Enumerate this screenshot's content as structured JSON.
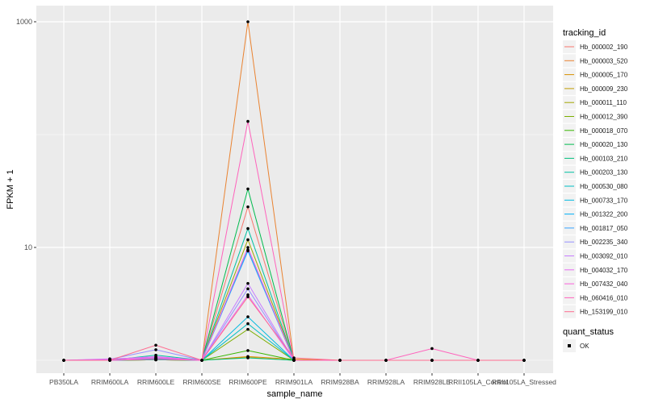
{
  "chart_data": {
    "type": "line",
    "xlabel": "sample_name",
    "ylabel": "FPKM + 1",
    "y_scale": "log10",
    "ylim": [
      0.95,
      1150
    ],
    "y_ticks": [
      10,
      1000
    ],
    "y_tick_labels": [
      "10",
      "1000"
    ],
    "grid": true,
    "legend_position": "right",
    "legend_title": "tracking_id",
    "point_legend_title": "quant_status",
    "point_legend_entries": [
      "OK"
    ],
    "categories": [
      "PB350LA",
      "RRIM600LA",
      "RRIM600LE",
      "RRIM600SE",
      "RRIM600PE",
      "RRIM901LA",
      "RRIM928BA",
      "RRIM928LA",
      "RRIM928LE",
      "RRII105LA_Control",
      "RRII105LA_Stressed"
    ],
    "series": [
      {
        "name": "Hb_000002_190",
        "color": "#F8766D",
        "values": [
          1,
          1,
          1.02,
          1,
          22.9,
          1,
          1,
          1,
          1,
          1,
          1
        ]
      },
      {
        "name": "Hb_000003_520",
        "color": "#EA8331",
        "values": [
          1,
          1,
          1.01,
          1,
          1000,
          1,
          1,
          1,
          1,
          1,
          1
        ]
      },
      {
        "name": "Hb_000005_170",
        "color": "#D89000",
        "values": [
          1,
          1,
          1.01,
          1,
          1.08,
          1.02,
          1,
          1,
          1,
          1,
          1
        ]
      },
      {
        "name": "Hb_000009_230",
        "color": "#C09B00",
        "values": [
          1,
          1,
          1.01,
          1,
          1.06,
          1,
          1,
          1,
          1,
          1,
          1
        ]
      },
      {
        "name": "Hb_000011_110",
        "color": "#A3A500",
        "values": [
          1,
          1,
          1.02,
          1,
          11.7,
          1,
          1,
          1,
          1,
          1,
          1
        ]
      },
      {
        "name": "Hb_000012_390",
        "color": "#7CAE00",
        "values": [
          1,
          1,
          1.01,
          1,
          1.88,
          1,
          1,
          1,
          1,
          1,
          1
        ]
      },
      {
        "name": "Hb_000018_070",
        "color": "#39B600",
        "values": [
          1,
          1,
          1.04,
          1,
          1.22,
          1,
          1,
          1,
          1,
          1,
          1
        ]
      },
      {
        "name": "Hb_000020_130",
        "color": "#00BB4E",
        "values": [
          1,
          1,
          1.02,
          1,
          33,
          1,
          1,
          1,
          1,
          1,
          1
        ]
      },
      {
        "name": "Hb_000103_210",
        "color": "#00BF7D",
        "values": [
          1,
          1,
          1.01,
          1,
          1.05,
          1,
          1,
          1,
          1,
          1,
          1
        ]
      },
      {
        "name": "Hb_000203_130",
        "color": "#00C1A3",
        "values": [
          1,
          1,
          1.11,
          1,
          14.7,
          1,
          1,
          1,
          1,
          1,
          1
        ]
      },
      {
        "name": "Hb_000530_080",
        "color": "#00BFC4",
        "values": [
          1,
          1,
          1.03,
          1,
          2.11,
          1,
          1,
          1,
          1,
          1,
          1
        ]
      },
      {
        "name": "Hb_000733_170",
        "color": "#00BAE0",
        "values": [
          1,
          1,
          1.02,
          1,
          2.43,
          1,
          1,
          1,
          1,
          1,
          1
        ]
      },
      {
        "name": "Hb_001322_200",
        "color": "#00B0F6",
        "values": [
          1,
          1,
          1.03,
          1,
          9.5,
          1,
          1,
          1,
          1,
          1,
          1
        ]
      },
      {
        "name": "Hb_001817_050",
        "color": "#35A2FF",
        "values": [
          1,
          1,
          1.03,
          1,
          9.3,
          1,
          1,
          1,
          1,
          1,
          1
        ]
      },
      {
        "name": "Hb_002235_340",
        "color": "#9590FF",
        "values": [
          1,
          1.02,
          1.24,
          1,
          4.3,
          1,
          1,
          1,
          1,
          1,
          1
        ]
      },
      {
        "name": "Hb_003092_010",
        "color": "#C77CFF",
        "values": [
          1,
          1.03,
          1.06,
          1,
          4.8,
          1,
          1,
          1,
          1,
          1,
          1
        ]
      },
      {
        "name": "Hb_004032_170",
        "color": "#E76BF3",
        "values": [
          1,
          1.02,
          1.08,
          1,
          3.8,
          1,
          1,
          1,
          1,
          1,
          1
        ]
      },
      {
        "name": "Hb_007432_040",
        "color": "#FA62DB",
        "values": [
          1,
          1,
          1.05,
          1,
          10.0,
          1,
          1,
          1,
          1,
          1,
          1
        ]
      },
      {
        "name": "Hb_060416_010",
        "color": "#FF62BC",
        "values": [
          1,
          1,
          1.02,
          1,
          131,
          1,
          1,
          1,
          1.27,
          1,
          1
        ]
      },
      {
        "name": "Hb_153199_010",
        "color": "#FF6C91",
        "values": [
          1,
          1,
          1.36,
          1,
          3.65,
          1.05,
          1,
          1,
          1,
          1,
          1
        ]
      }
    ]
  }
}
